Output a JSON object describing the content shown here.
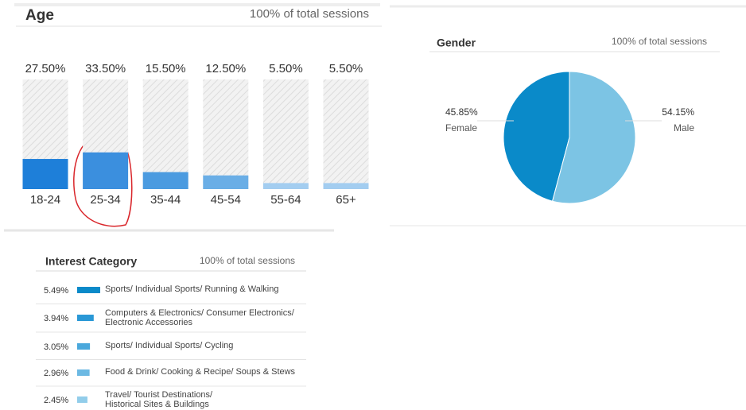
{
  "chart_data": [
    {
      "type": "bar",
      "title": "Age",
      "subtitle": "100% of total sessions",
      "categories": [
        "18-24",
        "25-34",
        "35-44",
        "45-54",
        "55-64",
        "65+"
      ],
      "values": [
        27.5,
        33.5,
        15.5,
        12.5,
        5.5,
        5.5
      ],
      "value_labels": [
        "27.50%",
        "33.50%",
        "15.50%",
        "12.50%",
        "5.50%",
        "5.50%"
      ],
      "colors": [
        "#1e7fd9",
        "#3b8fde",
        "#4b9be0",
        "#6aaee6",
        "#a3cdf0",
        "#a3cdf0"
      ],
      "ylim": [
        0,
        100
      ]
    },
    {
      "type": "pie",
      "title": "Gender",
      "subtitle": "100% of total sessions",
      "categories": [
        "Female",
        "Male"
      ],
      "values": [
        45.85,
        54.15
      ],
      "value_labels": [
        "45.85%",
        "54.15%"
      ],
      "colors": [
        "#0a8ac9",
        "#7cc4e4"
      ]
    },
    {
      "type": "hbar",
      "title": "Interest Category",
      "subtitle": "100% of total sessions",
      "categories": [
        "Sports/ Individual Sports/ Running & Walking",
        "Computers & Electronics/ Consumer Electronics/\nElectronic Accessories",
        "Sports/ Individual Sports/ Cycling",
        "Food & Drink/ Cooking & Recipe/ Soups & Stews",
        "Travel/ Tourist Destinations/\nHistorical Sites & Buildings"
      ],
      "values": [
        5.49,
        3.94,
        3.05,
        2.96,
        2.45
      ],
      "value_labels": [
        "5.49%",
        "3.94%",
        "3.05%",
        "2.96%",
        "2.45%"
      ],
      "colors": [
        "#0a8ac9",
        "#2a98d6",
        "#4aa8dc",
        "#6cb9e3",
        "#92cdea"
      ]
    }
  ]
}
